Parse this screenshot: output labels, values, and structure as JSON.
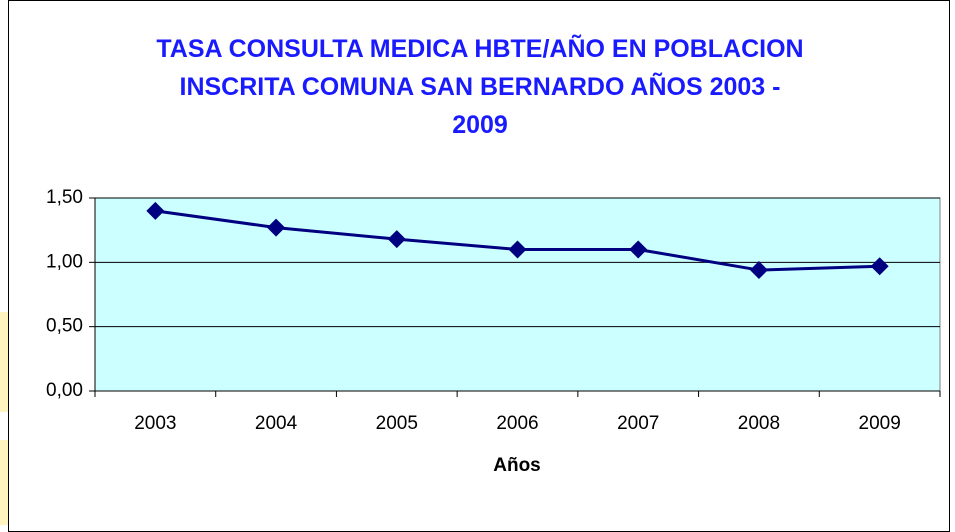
{
  "chart_data": {
    "type": "line",
    "title": "TASA CONSULTA MEDICA HBTE/AÑO EN POBLACION INSCRITA COMUNA SAN BERNARDO AÑOS 2003 - 2009",
    "x_label": "Años",
    "categories": [
      "2003",
      "2004",
      "2005",
      "2006",
      "2007",
      "2008",
      "2009"
    ],
    "series": [
      {
        "color": "#000080",
        "values": [
          1.4,
          1.27,
          1.18,
          1.1,
          1.1,
          0.94,
          0.97
        ]
      }
    ],
    "ylim": [
      0,
      1.5
    ],
    "yticks": [
      {
        "value": 0,
        "label": "0,00"
      },
      {
        "value": 0.5,
        "label": "0,50"
      },
      {
        "value": 1,
        "label": "1,00"
      },
      {
        "value": 1.5,
        "label": "1,50"
      }
    ],
    "grid": true,
    "plot_background": "#ccffff"
  }
}
